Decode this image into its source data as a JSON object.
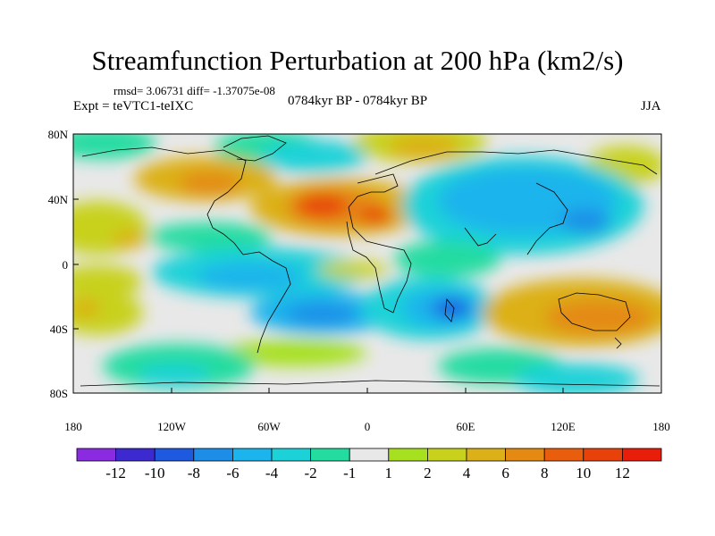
{
  "header": {
    "title": "Streamfunction Perturbation at 200 hPa (km2/s)",
    "stats": "rmsd= 3.06731 diff= -1.37075e-08",
    "experiment": "Expt = teVTC1-teIXC",
    "period": "0784kyr BP - 0784kyr BP",
    "season": "JJA"
  },
  "axes": {
    "y_ticks": [
      "80N",
      "40N",
      "0",
      "40S",
      "80S"
    ],
    "x_ticks": [
      "180",
      "120W",
      "60W",
      "0",
      "60E",
      "120E",
      "180"
    ]
  },
  "colorbar": {
    "labels": [
      "-12",
      "-10",
      "-8",
      "-6",
      "-4",
      "-2",
      "-1",
      "1",
      "2",
      "4",
      "6",
      "8",
      "10",
      "12"
    ],
    "colors": [
      "#8a2be2",
      "#3c2ad0",
      "#1e5ae0",
      "#1c8ee8",
      "#1cb4ec",
      "#1cd2d8",
      "#22dca0",
      "#e8e8e8",
      "#a6e01e",
      "#c8d21c",
      "#dcb018",
      "#e48a12",
      "#e85e0c",
      "#e8420a",
      "#e81e0a"
    ]
  },
  "colors": {
    "land_outline": "#000000",
    "neutral": "#e8e8e8"
  }
}
